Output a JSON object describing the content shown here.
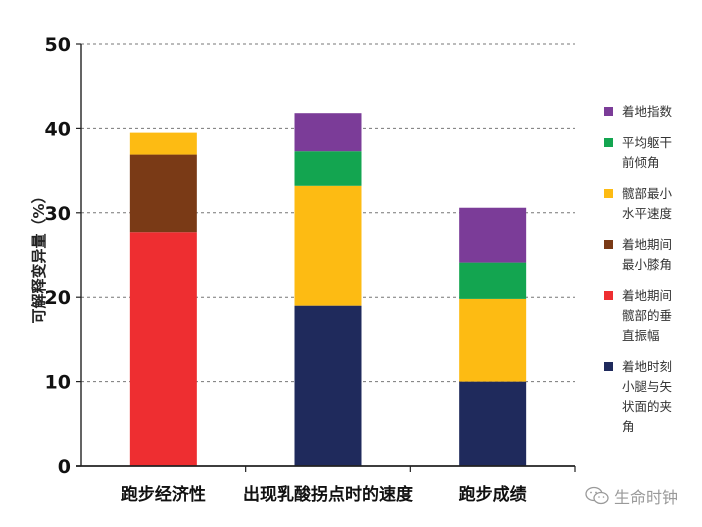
{
  "chart_data": {
    "type": "bar",
    "stacked": true,
    "title": "",
    "xlabel": "",
    "ylabel": "可解释变异量（%）",
    "ylim": [
      0,
      50
    ],
    "yticks": [
      0,
      10,
      20,
      30,
      40,
      50
    ],
    "grid": "horizontal dashed",
    "legend_position": "right",
    "categories": [
      "跑步经济性",
      "出现乳酸拐点时的速度",
      "跑步成绩"
    ],
    "series": [
      {
        "name": "着地时刻小腿与矢状面的夹角",
        "color": "#1f2a5c",
        "values": [
          0,
          19.0,
          10.0
        ]
      },
      {
        "name": "着地期间髋部的垂直振幅",
        "color": "#ee2e31",
        "values": [
          27.7,
          0,
          0
        ]
      },
      {
        "name": "着地期间最小膝角",
        "color": "#7a3a16",
        "values": [
          9.2,
          0,
          0
        ]
      },
      {
        "name": "髋部最小水平速度",
        "color": "#fdbb13",
        "values": [
          2.6,
          14.2,
          9.8
        ]
      },
      {
        "name": "平均躯干前倾角",
        "color": "#13a550",
        "values": [
          0,
          4.1,
          4.3
        ]
      },
      {
        "name": "着地指数",
        "color": "#7b3c98",
        "values": [
          0,
          4.5,
          6.5
        ]
      }
    ],
    "totals": [
      39.5,
      41.8,
      30.6
    ]
  },
  "legend": [
    {
      "text": "着地指数",
      "color": "#7b3c98"
    },
    {
      "text": "平均躯干\n前倾角",
      "color": "#13a550"
    },
    {
      "text": "髋部最小\n水平速度",
      "color": "#fdbb13"
    },
    {
      "text": "着地期间\n最小膝角",
      "color": "#7a3a16"
    },
    {
      "text": "着地期间\n髋部的垂\n直振幅",
      "color": "#ee2e31"
    },
    {
      "text": "着地时刻\n小腿与矢\n状面的夹\n角",
      "color": "#1f2a5c"
    }
  ],
  "watermark": {
    "text": "生命时钟",
    "icon": "wechat-icon"
  }
}
